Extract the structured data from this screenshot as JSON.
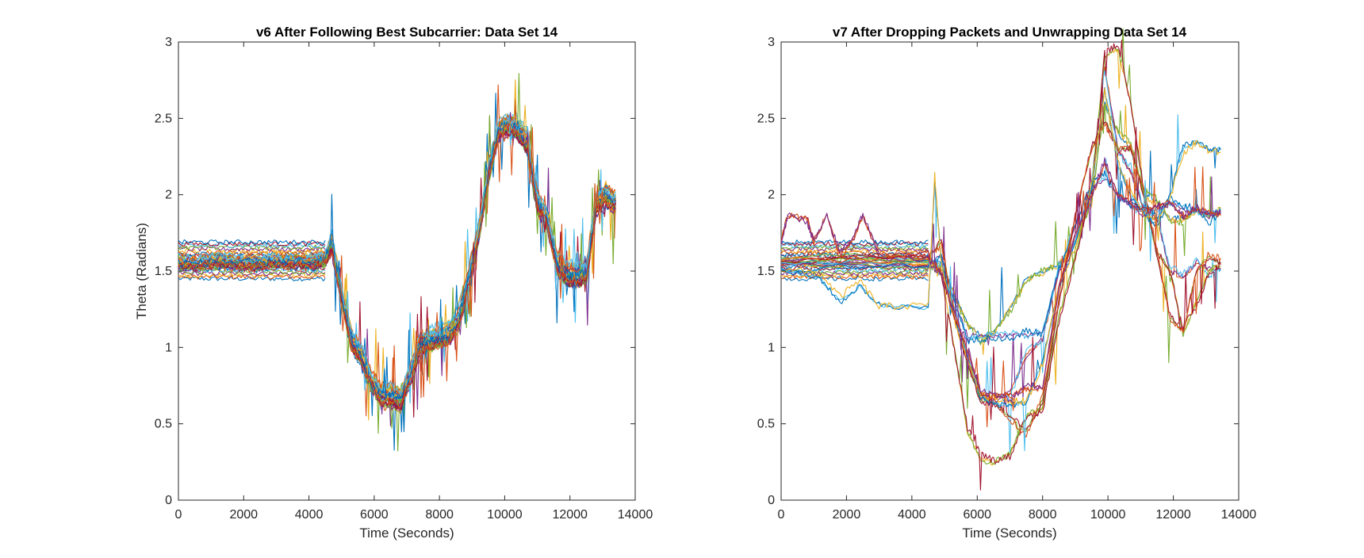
{
  "palette": [
    "#0072BD",
    "#D95319",
    "#EDB120",
    "#7E2F8E",
    "#77AC30",
    "#4DBEEE",
    "#A2142F"
  ],
  "chart_data": [
    {
      "type": "line",
      "title": "v6 After Following Best Subcarrier: Data Set 14",
      "xlabel": "Time (Seconds)",
      "ylabel": "Theta (Radians)",
      "xlim": [
        0,
        14000
      ],
      "ylim": [
        0,
        3
      ],
      "xticks": [
        0,
        2000,
        4000,
        6000,
        8000,
        10000,
        12000,
        14000
      ],
      "yticks": [
        0,
        0.5,
        1,
        1.5,
        2,
        2.5,
        3
      ],
      "grid": false,
      "legend": "none",
      "series_count": 30,
      "series_template": {
        "x": [
          0,
          600,
          1200,
          1800,
          2400,
          3000,
          3600,
          4200,
          4500,
          4700,
          5000,
          5300,
          5600,
          5900,
          6200,
          6500,
          6800,
          7100,
          7400,
          7700,
          8000,
          8300,
          8600,
          8900,
          9200,
          9500,
          9800,
          10100,
          10400,
          10700,
          11000,
          11300,
          11600,
          11900,
          12200,
          12500,
          12800,
          13100,
          13400
        ],
        "y": [
          1.56,
          1.55,
          1.57,
          1.56,
          1.55,
          1.57,
          1.56,
          1.56,
          1.58,
          1.7,
          1.35,
          1.05,
          0.95,
          0.78,
          0.7,
          0.68,
          0.66,
          0.82,
          1.02,
          1.05,
          1.07,
          1.1,
          1.2,
          1.45,
          1.75,
          2.15,
          2.42,
          2.47,
          2.43,
          2.35,
          1.95,
          1.85,
          1.55,
          1.48,
          1.47,
          1.5,
          1.95,
          2.0,
          1.95
        ]
      },
      "band": {
        "x_start": 0,
        "x_end": 4500,
        "y_min": 1.45,
        "y_max": 1.69
      }
    },
    {
      "type": "line",
      "title": "v7 After Dropping Packets and Unwrapping Data Set 14",
      "xlabel": "Time (Seconds)",
      "ylabel": "",
      "xlim": [
        0,
        14000
      ],
      "ylim": [
        0,
        3
      ],
      "xticks": [
        0,
        2000,
        4000,
        6000,
        8000,
        10000,
        12000,
        14000
      ],
      "yticks": [
        0,
        0.5,
        1,
        1.5,
        2,
        2.5,
        3
      ],
      "grid": false,
      "legend": "none",
      "series": [
        {
          "x": [
            0,
            4500,
            4900,
            5300,
            5700,
            6100,
            6500,
            7000,
            7500,
            8000,
            8500,
            9000,
            9500,
            9900,
            10300,
            10700,
            11100,
            11500,
            11900,
            12300,
            12700,
            13100,
            13450
          ],
          "y": [
            1.56,
            1.56,
            1.55,
            1.35,
            1.15,
            1.08,
            1.1,
            1.25,
            1.45,
            1.5,
            1.55,
            1.7,
            1.95,
            2.6,
            2.4,
            2.3,
            2.0,
            1.95,
            1.85,
            1.85,
            1.9,
            1.88,
            1.9
          ]
        },
        {
          "x": [
            0,
            4500,
            4900,
            5300,
            5700,
            6100,
            6500,
            7000,
            7500,
            8000,
            8500,
            9000,
            9500,
            9900,
            10300,
            10700,
            11100,
            11500,
            11900,
            12300,
            12700,
            13100,
            13450
          ],
          "y": [
            1.55,
            1.55,
            1.5,
            1.25,
            0.95,
            0.68,
            0.66,
            0.7,
            0.95,
            1.05,
            1.5,
            1.7,
            2.05,
            2.85,
            2.3,
            2.15,
            1.9,
            1.85,
            1.5,
            1.45,
            1.55,
            1.5,
            1.52
          ]
        },
        {
          "x": [
            0,
            4500,
            4900,
            5300,
            5700,
            6100,
            6500,
            7000,
            7500,
            8000,
            8500,
            9000,
            9500,
            9900,
            10300,
            10700,
            11100,
            11500,
            11900,
            12300,
            12700,
            13100,
            13450
          ],
          "y": [
            1.58,
            1.58,
            1.5,
            1.0,
            0.45,
            0.27,
            0.24,
            0.3,
            0.55,
            0.6,
            1.2,
            1.6,
            2.05,
            2.9,
            2.95,
            2.6,
            2.0,
            1.6,
            1.5,
            1.1,
            1.3,
            1.5,
            1.55
          ]
        },
        {
          "x": [
            0,
            4500,
            4900,
            5300,
            5700,
            6100,
            6500,
            7000,
            7500,
            8000,
            8500,
            9000,
            9500,
            9900,
            10300,
            10700,
            11100,
            11500,
            11900,
            12300,
            12700,
            13100,
            13450
          ],
          "y": [
            1.54,
            1.54,
            1.6,
            1.3,
            1.08,
            1.08,
            1.07,
            1.08,
            1.08,
            1.1,
            1.5,
            1.8,
            2.05,
            2.1,
            2.0,
            1.92,
            1.9,
            1.9,
            1.95,
            1.9,
            1.9,
            1.85,
            1.9
          ]
        },
        {
          "x": [
            0,
            4500,
            4900,
            5300,
            5700,
            6100,
            6500,
            7000,
            7500,
            8000,
            8500,
            9000,
            9500,
            9900,
            10300,
            10700,
            11100,
            11500,
            11900,
            12300,
            12700,
            13100,
            13450
          ],
          "y": [
            1.57,
            1.57,
            1.7,
            1.2,
            0.9,
            0.65,
            0.64,
            0.55,
            0.45,
            0.65,
            1.3,
            1.85,
            2.3,
            2.5,
            2.3,
            2.3,
            2.0,
            1.6,
            1.2,
            1.1,
            1.5,
            1.6,
            1.55
          ]
        },
        {
          "x": [
            0,
            1200,
            1800,
            2400,
            3000,
            3600,
            4500,
            4700,
            4900,
            5300,
            5700,
            6100,
            6500,
            7000,
            7500,
            8000,
            8500,
            9000,
            9500,
            9900,
            10300,
            10700,
            11100,
            11500,
            11900,
            12300,
            12700,
            13100,
            13450
          ],
          "y": [
            1.52,
            1.45,
            1.3,
            1.4,
            1.28,
            1.27,
            1.26,
            2.1,
            1.55,
            1.2,
            0.95,
            0.68,
            0.64,
            0.62,
            0.65,
            0.9,
            1.4,
            1.7,
            2.05,
            2.7,
            2.2,
            2.0,
            1.9,
            1.8,
            2.0,
            2.3,
            2.35,
            2.3,
            2.3
          ]
        },
        {
          "x": [
            0,
            200,
            800,
            1000,
            1400,
            1800,
            2200,
            2500,
            3000,
            4500,
            4900,
            5300,
            5700,
            6100,
            6500,
            7000,
            7500,
            8000,
            8500,
            9000,
            9500,
            9900,
            10300,
            10700,
            11100,
            11500,
            11900,
            12300,
            12700,
            13100,
            13450
          ],
          "y": [
            1.7,
            1.85,
            1.85,
            1.7,
            1.86,
            1.6,
            1.7,
            1.86,
            1.6,
            1.58,
            1.5,
            1.2,
            0.98,
            0.7,
            0.68,
            0.69,
            0.72,
            0.75,
            1.4,
            1.75,
            2.0,
            2.2,
            2.0,
            1.95,
            1.9,
            1.92,
            1.95,
            1.85,
            1.9,
            1.88,
            1.87
          ]
        }
      ],
      "band": {
        "x_start": 0,
        "x_end": 4500,
        "y_min": 1.45,
        "y_max": 1.69
      }
    }
  ]
}
